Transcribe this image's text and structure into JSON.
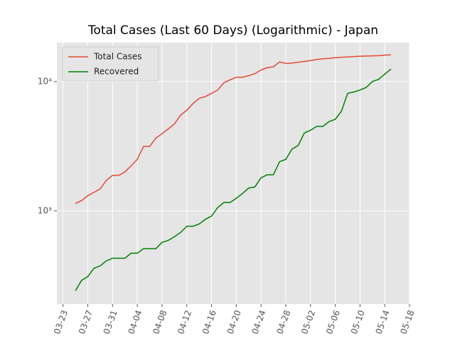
{
  "chart_data": {
    "type": "line",
    "title": "Total Cases (Last 60 Days) (Logarithmic) - Japan",
    "x": [
      "03-25",
      "03-26",
      "03-27",
      "03-28",
      "03-29",
      "03-30",
      "03-31",
      "04-01",
      "04-02",
      "04-03",
      "04-04",
      "04-05",
      "04-06",
      "04-07",
      "04-08",
      "04-09",
      "04-10",
      "04-11",
      "04-12",
      "04-13",
      "04-14",
      "04-15",
      "04-16",
      "04-17",
      "04-18",
      "04-19",
      "04-20",
      "04-21",
      "04-22",
      "04-23",
      "04-24",
      "04-25",
      "04-26",
      "04-27",
      "04-28",
      "04-29",
      "04-30",
      "05-01",
      "05-02",
      "05-03",
      "05-04",
      "05-05",
      "05-06",
      "05-07",
      "05-08",
      "05-09",
      "05-10",
      "05-11",
      "05-12",
      "05-13",
      "05-14",
      "05-15"
    ],
    "series": [
      {
        "name": "Total Cases",
        "color": "#e24a33",
        "values": [
          1140,
          1200,
          1310,
          1390,
          1480,
          1720,
          1880,
          1880,
          2000,
          2230,
          2500,
          3150,
          3150,
          3650,
          3950,
          4300,
          4700,
          5500,
          6000,
          6750,
          7400,
          7650,
          8100,
          8600,
          9800,
          10300,
          10800,
          10800,
          11100,
          11500,
          12300,
          12800,
          13000,
          14200,
          13800,
          13900,
          14100,
          14300,
          14500,
          14800,
          15000,
          15100,
          15300,
          15400,
          15500,
          15600,
          15700,
          15750,
          15800,
          15850,
          16000,
          16100
        ]
      },
      {
        "name": "Recovered",
        "color": "#008000",
        "values": [
          241,
          290,
          310,
          360,
          375,
          410,
          430,
          430,
          430,
          470,
          470,
          510,
          510,
          510,
          570,
          590,
          630,
          680,
          760,
          760,
          790,
          860,
          910,
          1060,
          1160,
          1160,
          1250,
          1360,
          1500,
          1530,
          1800,
          1900,
          1900,
          2400,
          2500,
          3000,
          3200,
          4000,
          4200,
          4500,
          4500,
          4900,
          5100,
          5900,
          8100,
          8300,
          8600,
          9000,
          10000,
          10400,
          11400,
          12500
        ]
      }
    ],
    "xlim": [
      "03-22",
      "05-18"
    ],
    "xticks": [
      "03-23",
      "03-27",
      "03-31",
      "04-04",
      "04-08",
      "04-12",
      "04-16",
      "04-20",
      "04-24",
      "04-28",
      "05-02",
      "05-06",
      "05-10",
      "05-14",
      "05-18"
    ],
    "ylim": [
      190,
      20000
    ],
    "yticks": [
      {
        "value": 1000,
        "label": "10³"
      },
      {
        "value": 10000,
        "label": "10⁴"
      }
    ],
    "yscale": "log",
    "grid": true,
    "legend": "upper left"
  }
}
